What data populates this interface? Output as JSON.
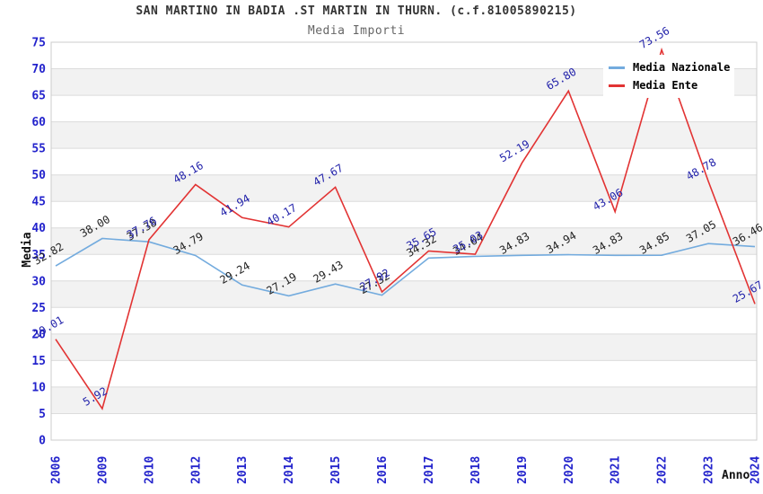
{
  "header": {
    "title": "SAN MARTINO IN BADIA .ST MARTIN IN THURN. (c.f.81005890215)",
    "subtitle": "Media Importi"
  },
  "axes": {
    "y_title": "Media",
    "x_title": "Anno"
  },
  "legend": {
    "items": [
      {
        "label": "Media Nazionale",
        "color": "#73ABDE"
      },
      {
        "label": "Media Ente",
        "color": "#E23333"
      }
    ]
  },
  "chart_data": {
    "type": "line",
    "title": "SAN MARTINO IN BADIA .ST MARTIN IN THURN. (c.f.81005890215)",
    "subtitle": "Media Importi",
    "xlabel": "Anno",
    "ylabel": "Media",
    "ylim": [
      0,
      75
    ],
    "ytick_step": 5,
    "grid": true,
    "legend_position": "top-right",
    "x": [
      "2006",
      "2009",
      "2010",
      "2012",
      "2013",
      "2014",
      "2015",
      "2016",
      "2017",
      "2018",
      "2019",
      "2020",
      "2021",
      "2022",
      "2023",
      "2024"
    ],
    "series": [
      {
        "name": "Media Nazionale",
        "color": "#73ABDE",
        "label_color": "#222222",
        "values": [
          32.82,
          38.0,
          37.38,
          34.79,
          29.24,
          27.19,
          29.43,
          27.32,
          34.32,
          34.64,
          34.83,
          34.94,
          34.83,
          34.85,
          37.05,
          36.46
        ],
        "labels": [
          "32.82",
          "38.00",
          "37.38",
          "34.79",
          "29.24",
          "27.19",
          "29.43",
          "27.32",
          "34.32",
          "34.64",
          "34.83",
          "34.94",
          "34.83",
          "34.85",
          "37.05",
          "36.46"
        ]
      },
      {
        "name": "Media Ente",
        "color": "#E23333",
        "label_color": "#2222AA",
        "values": [
          19.01,
          5.92,
          37.76,
          48.16,
          41.94,
          40.17,
          47.67,
          27.92,
          35.65,
          35.03,
          52.19,
          65.8,
          43.06,
          73.56,
          48.78,
          25.67
        ],
        "labels": [
          "19.01",
          "5.92",
          "37.76",
          "48.16",
          "41.94",
          "40.17",
          "47.67",
          "27.92",
          "35.65",
          "35.03",
          "52.19",
          "65.80",
          "43.06",
          "73.56",
          "48.78",
          "25.67"
        ]
      }
    ],
    "colors": {
      "axis_tick": "#2323CC",
      "grid": "#DCDCDC",
      "band": "#F2F2F2",
      "border": "#CCCCCC"
    }
  }
}
